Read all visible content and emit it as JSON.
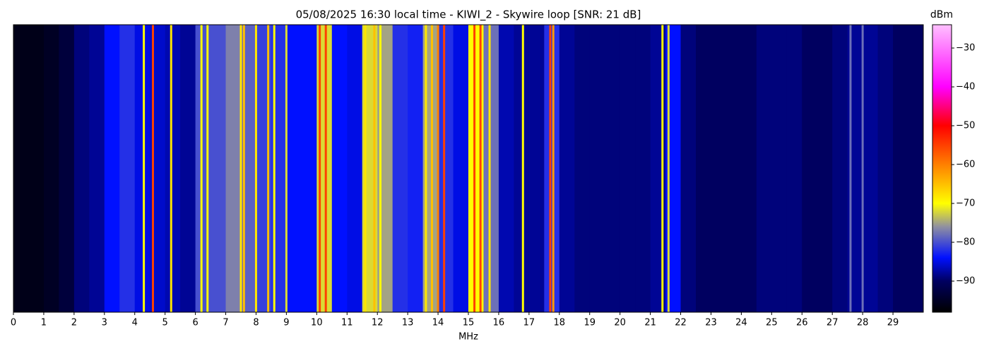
{
  "chart_data": {
    "type": "spectrogram",
    "title": "05/08/2025 16:30 local time - KIWI_2 - Skywire loop [SNR: 21 dB]",
    "xlabel": "MHz",
    "colorbar_label": "dBm",
    "xlim": [
      0,
      30
    ],
    "xticks": [
      0,
      1,
      2,
      3,
      4,
      5,
      6,
      7,
      8,
      9,
      10,
      11,
      12,
      13,
      14,
      15,
      16,
      17,
      18,
      19,
      20,
      21,
      22,
      23,
      24,
      25,
      26,
      27,
      28,
      29
    ],
    "bin_width": 0.5,
    "x": [
      0,
      0.5,
      1,
      1.5,
      2,
      2.5,
      3,
      3.5,
      4,
      4.5,
      5,
      5.5,
      6,
      6.5,
      7,
      7.5,
      8,
      8.5,
      9,
      9.5,
      10,
      10.5,
      11,
      11.5,
      12,
      12.5,
      13,
      13.5,
      14,
      14.5,
      15,
      15.5,
      16,
      16.5,
      17,
      17.5,
      18,
      18.5,
      19,
      19.5,
      20,
      20.5,
      21,
      21.5,
      22,
      22.5,
      23,
      23.5,
      24,
      24.5,
      25,
      25.5,
      26,
      26.5,
      27,
      27.5,
      28,
      28.5,
      29,
      29.5
    ],
    "values": [
      -96,
      -96,
      -95,
      -93,
      -89,
      -88,
      -84,
      -82,
      -85,
      -86,
      -87,
      -88,
      -80,
      -80,
      -77,
      -79,
      -81,
      -82,
      -84,
      -84,
      -72,
      -84,
      -85,
      -72,
      -75,
      -82,
      -83,
      -75,
      -82,
      -85,
      -70,
      -78,
      -87,
      -88,
      -88,
      -82,
      -88,
      -89,
      -89,
      -89,
      -89,
      -89,
      -88,
      -84,
      -89,
      -90,
      -90,
      -90,
      -90,
      -89,
      -89,
      -89,
      -90,
      -90,
      -89,
      -88,
      -88,
      -89,
      -90,
      -90
    ],
    "signals": {
      "x": [
        4.3,
        4.6,
        5.2,
        6.2,
        6.4,
        7.5,
        7.6,
        8.0,
        8.4,
        8.6,
        9.0,
        10.1,
        10.3,
        11.6,
        11.9,
        12.1,
        13.6,
        13.8,
        14.0,
        14.2,
        15.2,
        15.4,
        15.7,
        16.8,
        17.7,
        17.8,
        21.4,
        21.6,
        27.6,
        28.0
      ],
      "values": [
        -70,
        -55,
        -68,
        -70,
        -70,
        -68,
        -65,
        -68,
        -65,
        -70,
        -72,
        -55,
        -55,
        -68,
        -65,
        -70,
        -68,
        -65,
        -60,
        -55,
        -55,
        -55,
        -68,
        -70,
        -55,
        -62,
        -70,
        -72,
        -78,
        -78
      ]
    },
    "clim": [
      -98,
      -24
    ],
    "cticks": [
      {
        "value": -30,
        "label": "−30"
      },
      {
        "value": -40,
        "label": "−40"
      },
      {
        "value": -50,
        "label": "−50"
      },
      {
        "value": -60,
        "label": "−60"
      },
      {
        "value": -70,
        "label": "−70"
      },
      {
        "value": -80,
        "label": "−80"
      },
      {
        "value": -90,
        "label": "−90"
      }
    ],
    "colormap": [
      [
        -98,
        "#000000"
      ],
      [
        -90,
        "#000060"
      ],
      [
        -84,
        "#0010ff"
      ],
      [
        -76,
        "#9090a0"
      ],
      [
        -70,
        "#ffff00"
      ],
      [
        -60,
        "#ff8000"
      ],
      [
        -50,
        "#ff0000"
      ],
      [
        -40,
        "#ff00ff"
      ],
      [
        -24,
        "#ffc0ff"
      ]
    ]
  }
}
